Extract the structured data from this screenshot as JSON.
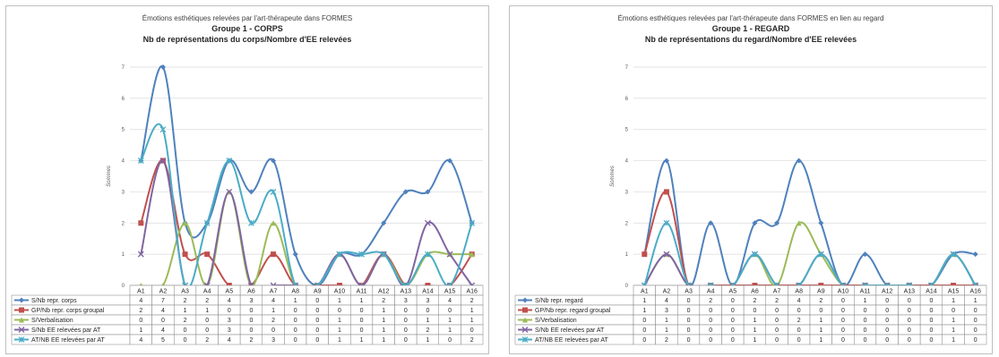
{
  "chart_data": [
    {
      "type": "line",
      "title": "Émotions esthétiques relevées par l'art-thérapeute dans FORMES",
      "subtitle": "Groupe 1 - CORPS",
      "subtitle2": "Nb de représentations du corps/Nombre d'EE relevées",
      "ylabel": "Sommes",
      "xlabel": "",
      "ylim": [
        0,
        7
      ],
      "yticks": [
        "0",
        "1",
        "2",
        "3",
        "4",
        "5",
        "6",
        "7"
      ],
      "grid": true,
      "legend": "table-bottom",
      "categories": [
        "A1",
        "A2",
        "A3",
        "A4",
        "A5",
        "A6",
        "A7",
        "A8",
        "A9",
        "A10",
        "A11",
        "A12",
        "A13",
        "A14",
        "A15",
        "A16"
      ],
      "series": [
        {
          "name": "S/Nb repr. corps",
          "color": "#4F81BD",
          "marker": "diamond",
          "values": [
            4,
            7,
            2,
            2,
            4,
            3,
            4,
            1,
            0,
            1,
            1,
            2,
            3,
            3,
            4,
            2
          ]
        },
        {
          "name": "GP/Nb repr. corps groupal",
          "color": "#C0504D",
          "marker": "square",
          "values": [
            2,
            4,
            1,
            1,
            0,
            0,
            1,
            0,
            0,
            0,
            0,
            1,
            0,
            0,
            0,
            1
          ]
        },
        {
          "name": "S/Verbalisation",
          "color": "#9BBB59",
          "marker": "triangle",
          "values": [
            0,
            0,
            2,
            0,
            3,
            0,
            2,
            0,
            0,
            1,
            0,
            1,
            0,
            1,
            1,
            1
          ]
        },
        {
          "name": "S/Nb EE relevées par AT",
          "color": "#8064A2",
          "marker": "x",
          "values": [
            1,
            4,
            0,
            0,
            3,
            0,
            0,
            0,
            0,
            1,
            0,
            1,
            0,
            2,
            1,
            0
          ]
        },
        {
          "name": "AT/NB EE relevées par AT",
          "color": "#4BACC6",
          "marker": "star",
          "values": [
            4,
            5,
            0,
            2,
            4,
            2,
            3,
            0,
            0,
            1,
            1,
            1,
            0,
            1,
            0,
            2
          ]
        }
      ]
    },
    {
      "type": "line",
      "title": "Émotions esthétiques relevées par l'art-thérapeute dans FORMES en lien au regard",
      "subtitle": "Groupe 1 - REGARD",
      "subtitle2": "Nb de représentations du regard/Nombre d'EE relevées",
      "ylabel": "Sommes",
      "xlabel": "",
      "ylim": [
        0,
        7
      ],
      "yticks": [
        "0",
        "1",
        "2",
        "3",
        "4",
        "5",
        "6",
        "7"
      ],
      "grid": true,
      "legend": "table-bottom",
      "categories": [
        "A1",
        "A2",
        "A3",
        "A4",
        "A5",
        "A6",
        "A7",
        "A8",
        "A9",
        "A10",
        "A11",
        "A12",
        "A13",
        "A14",
        "A15",
        "A16"
      ],
      "series": [
        {
          "name": "S/Nb repr. regard",
          "color": "#4F81BD",
          "marker": "diamond",
          "values": [
            1,
            4,
            0,
            2,
            0,
            2,
            2,
            4,
            2,
            0,
            1,
            0,
            0,
            0,
            1,
            1
          ]
        },
        {
          "name": "GP/Nb repr. regard groupal",
          "color": "#C0504D",
          "marker": "square",
          "values": [
            1,
            3,
            0,
            0,
            0,
            0,
            0,
            0,
            0,
            0,
            0,
            0,
            0,
            0,
            0,
            0
          ]
        },
        {
          "name": "S/Verbalisation",
          "color": "#9BBB59",
          "marker": "triangle",
          "values": [
            0,
            1,
            0,
            0,
            0,
            1,
            0,
            2,
            1,
            0,
            0,
            0,
            0,
            0,
            1,
            0
          ]
        },
        {
          "name": "S/Nb EE relevées par AT",
          "color": "#8064A2",
          "marker": "x",
          "values": [
            0,
            1,
            0,
            0,
            0,
            1,
            0,
            0,
            1,
            0,
            0,
            0,
            0,
            0,
            1,
            0
          ]
        },
        {
          "name": "AT/NB EE relevées par AT",
          "color": "#4BACC6",
          "marker": "star",
          "values": [
            0,
            2,
            0,
            0,
            0,
            1,
            0,
            0,
            1,
            0,
            0,
            0,
            0,
            0,
            1,
            0
          ]
        }
      ]
    }
  ]
}
